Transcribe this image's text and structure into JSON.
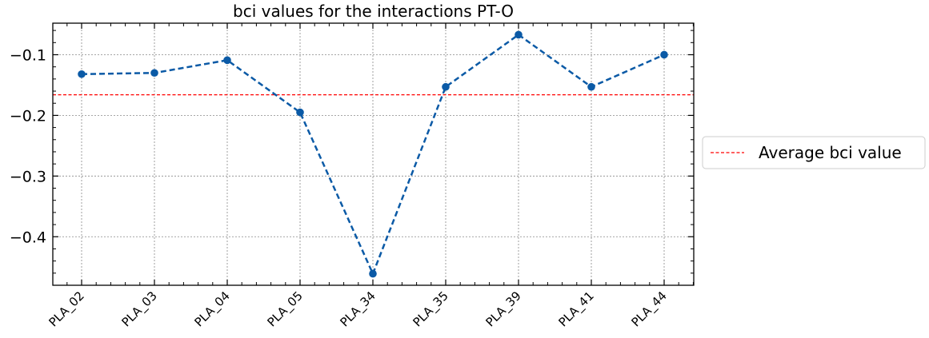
{
  "chart_data": {
    "type": "line",
    "title": "bci values for the interactions PT-O",
    "xlabel": "",
    "ylabel": "",
    "categories": [
      "PLA_02",
      "PLA_03",
      "PLA_04",
      "PLA_05",
      "PLA_34",
      "PLA_35",
      "PLA_39",
      "PLA_41",
      "PLA_44"
    ],
    "series": [
      {
        "values": [
          -0.132,
          -0.13,
          -0.109,
          -0.195,
          -0.461,
          -0.153,
          -0.067,
          -0.153,
          -0.1
        ],
        "color": "#0b5aa6",
        "line_style": "dashed",
        "marker": "circle"
      }
    ],
    "reference_lines": [
      {
        "name": "Average bci value",
        "value": -0.166,
        "color": "#ff0000",
        "line_style": "dashed"
      }
    ],
    "ylim": [
      -0.48,
      -0.048
    ],
    "yticks": [
      -0.1,
      -0.2,
      -0.3,
      -0.4
    ],
    "ytick_labels": [
      "−0.1",
      "−0.2",
      "−0.3",
      "−0.4"
    ],
    "grid": true,
    "legend": {
      "placement": "outside-right",
      "entries": [
        "Average bci value"
      ]
    }
  }
}
